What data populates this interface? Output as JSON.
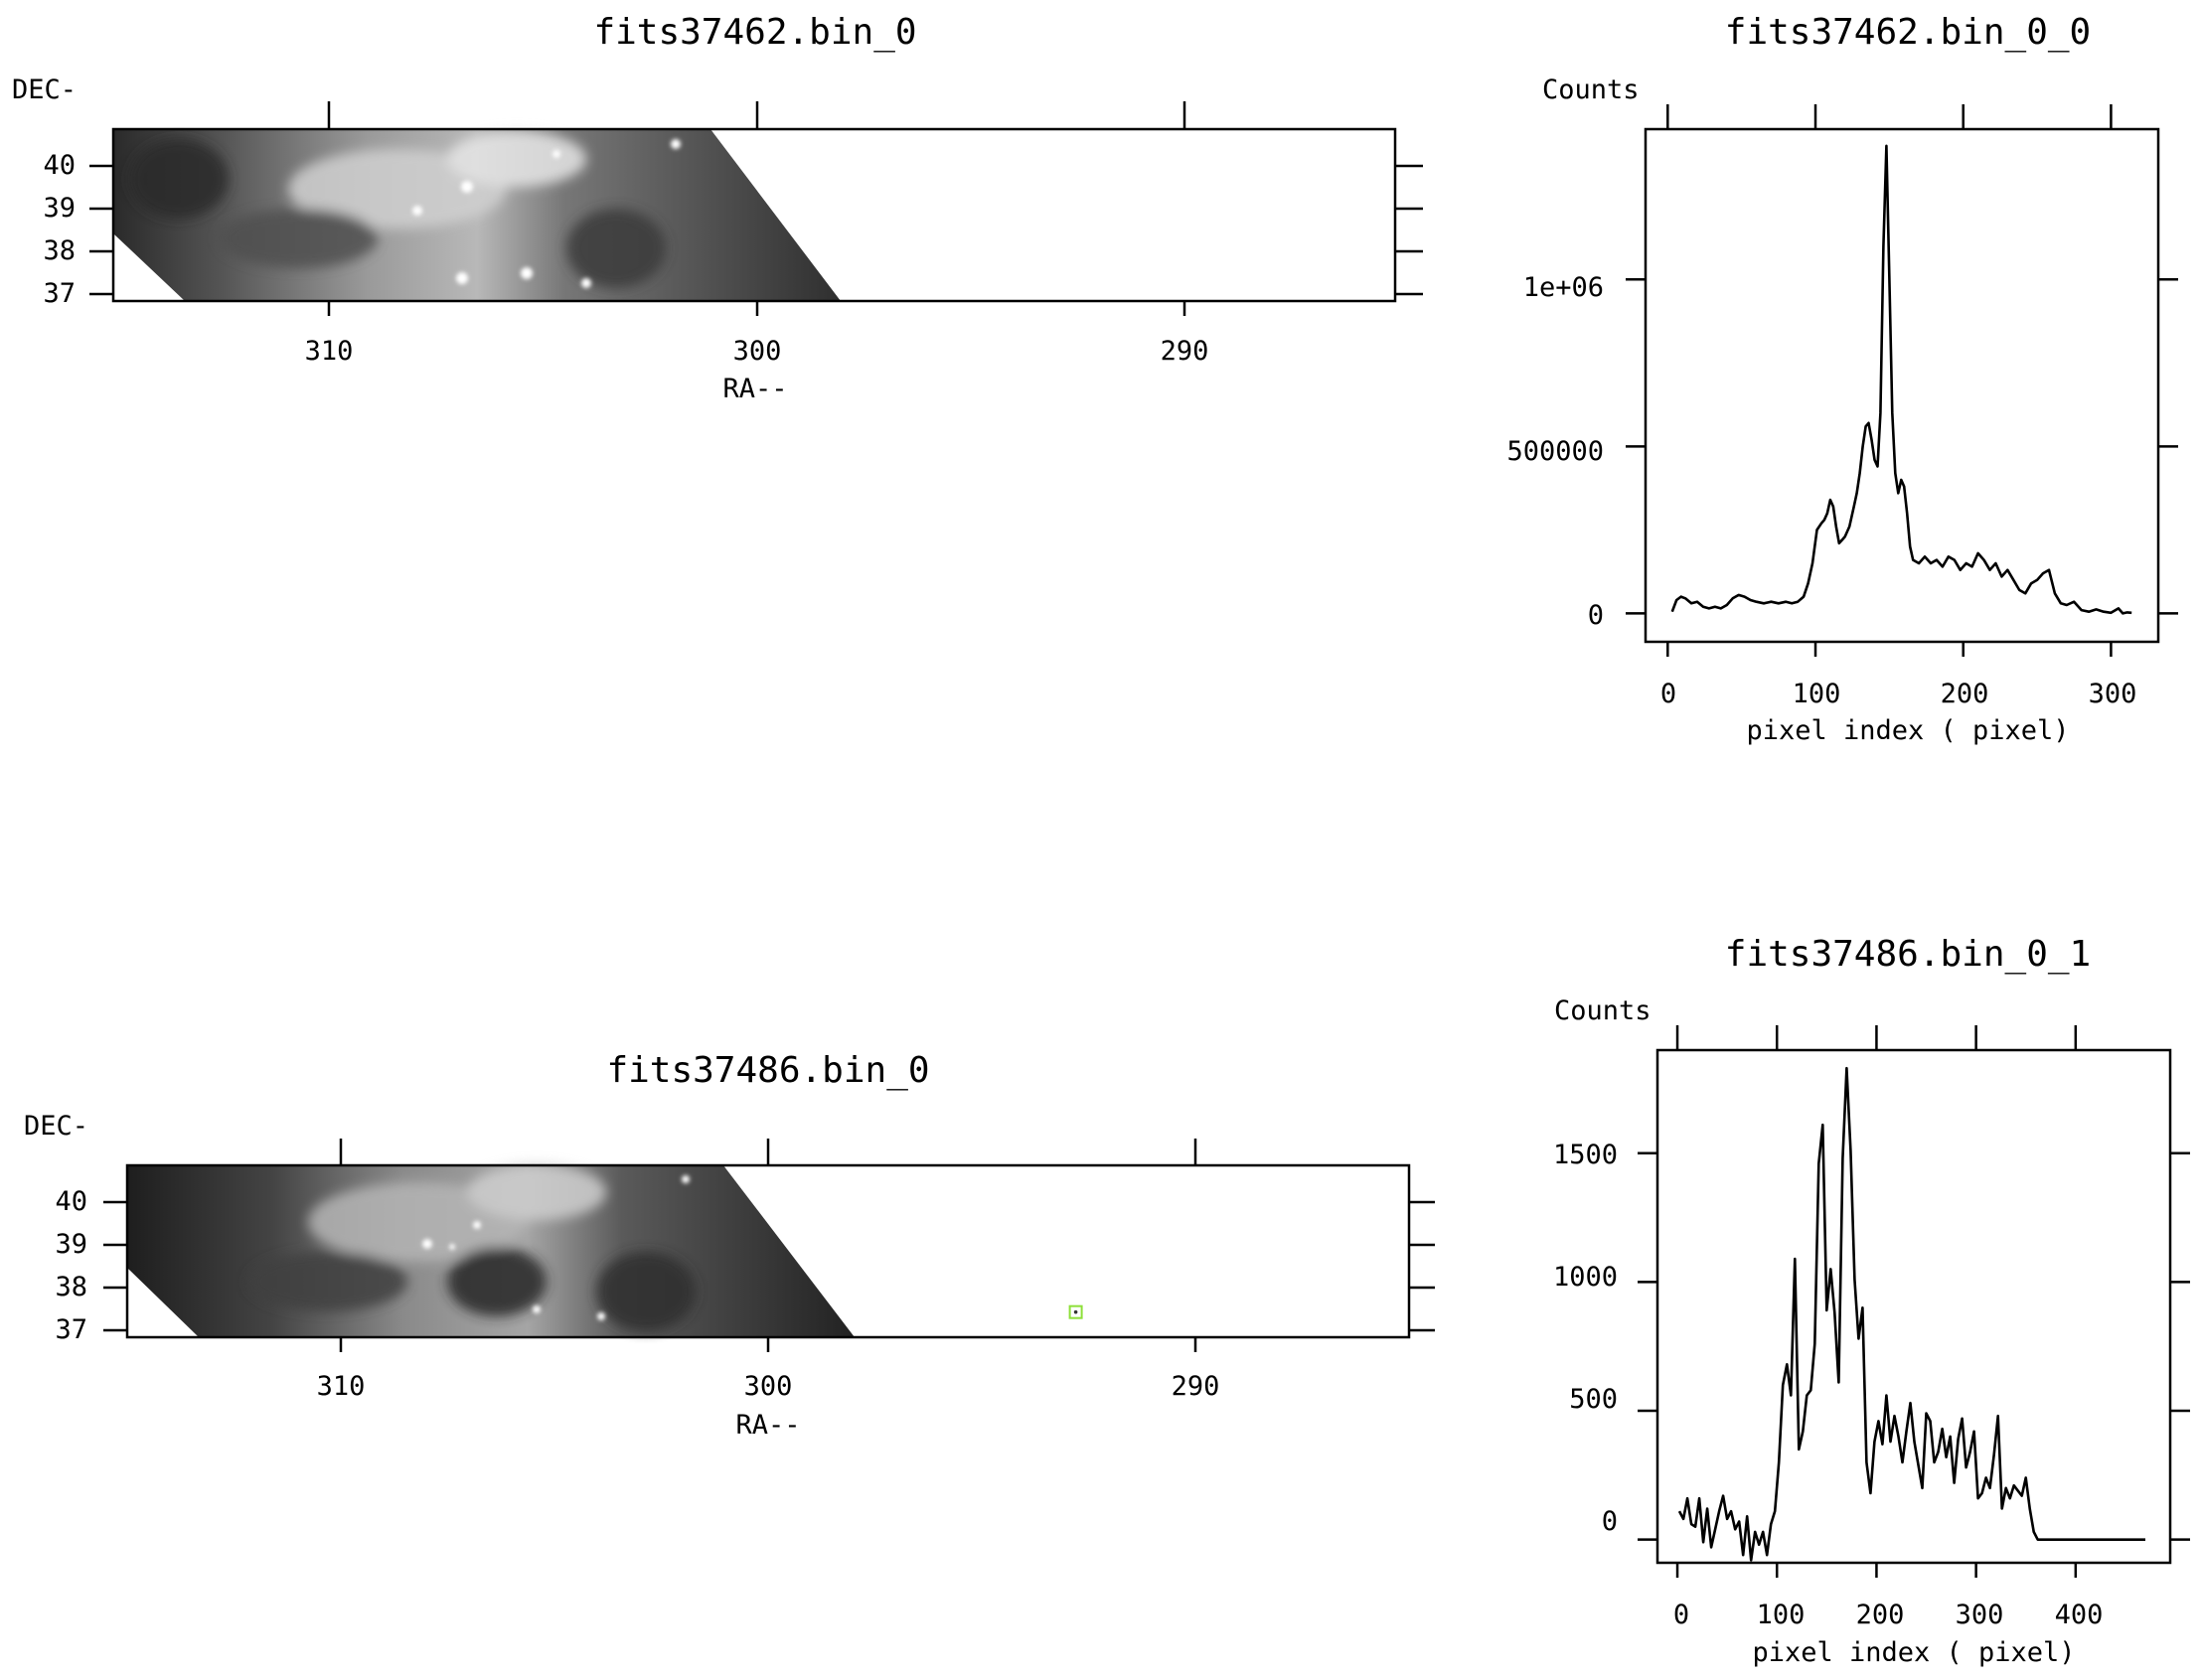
{
  "chart_data": [
    {
      "type": "heatmap",
      "title": "fits37462.bin_0",
      "xlabel": "RA--",
      "ylabel": "DEC-",
      "xlim": [
        315,
        285
      ],
      "ylim": [
        36.7,
        40.8
      ],
      "x_ticks": [
        "310",
        "300",
        "290"
      ],
      "y_ticks": [
        "40",
        "39",
        "38",
        "37"
      ],
      "colormap": "grayscale"
    },
    {
      "type": "line",
      "title": "fits37462.bin_0_0",
      "xlabel": "pixel index  ( pixel)",
      "ylabel": "Counts",
      "xlim": [
        -15,
        332
      ],
      "ylim": [
        -85000,
        1450000
      ],
      "x_ticks": [
        "0",
        "100",
        "200",
        "300"
      ],
      "y_ticks": [
        "0",
        "500000",
        "1e+06"
      ],
      "x": [
        3,
        6,
        9,
        12,
        16,
        20,
        24,
        28,
        32,
        36,
        40,
        44,
        48,
        52,
        56,
        60,
        65,
        70,
        75,
        80,
        84,
        88,
        92,
        95,
        98,
        101,
        104,
        106,
        108,
        110,
        112,
        114,
        116,
        118,
        120,
        123,
        126,
        128,
        130,
        132,
        134,
        136,
        138,
        140,
        142,
        144,
        146,
        148,
        150,
        152,
        154,
        156,
        158,
        160,
        162,
        164,
        166,
        170,
        174,
        178,
        182,
        186,
        190,
        194,
        198,
        202,
        206,
        210,
        214,
        218,
        222,
        226,
        230,
        234,
        238,
        242,
        246,
        250,
        254,
        258,
        262,
        266,
        270,
        275,
        280,
        285,
        290,
        295,
        300,
        305,
        308,
        311,
        314
      ],
      "y": [
        5000,
        40000,
        50000,
        45000,
        30000,
        35000,
        20000,
        15000,
        20000,
        15000,
        25000,
        45000,
        55000,
        50000,
        40000,
        35000,
        30000,
        35000,
        30000,
        35000,
        30000,
        35000,
        50000,
        90000,
        150000,
        250000,
        270000,
        280000,
        300000,
        340000,
        320000,
        260000,
        210000,
        220000,
        230000,
        260000,
        320000,
        360000,
        420000,
        500000,
        560000,
        570000,
        520000,
        460000,
        440000,
        600000,
        1100000,
        1400000,
        1000000,
        600000,
        420000,
        360000,
        400000,
        380000,
        300000,
        200000,
        160000,
        150000,
        170000,
        150000,
        160000,
        140000,
        170000,
        160000,
        130000,
        150000,
        140000,
        180000,
        160000,
        130000,
        150000,
        110000,
        130000,
        100000,
        70000,
        60000,
        90000,
        100000,
        120000,
        130000,
        60000,
        30000,
        25000,
        35000,
        10000,
        5000,
        12000,
        5000,
        2000,
        15000,
        0,
        3000,
        2000
      ]
    },
    {
      "type": "heatmap",
      "title": "fits37486.bin_0",
      "xlabel": "RA--",
      "ylabel": "DEC-",
      "xlim": [
        315,
        285
      ],
      "ylim": [
        36.7,
        40.8
      ],
      "x_ticks": [
        "310",
        "300",
        "290"
      ],
      "y_ticks": [
        "40",
        "39",
        "38",
        "37"
      ],
      "colormap": "grayscale",
      "marker": {
        "ra": 292.8,
        "dec": 37.3,
        "color": "#8ee03a"
      }
    },
    {
      "type": "line",
      "title": "fits37486.bin_0_1",
      "xlabel": "pixel index  ( pixel)",
      "ylabel": "Counts",
      "xlim": [
        -20,
        495
      ],
      "ylim": [
        -90,
        1900
      ],
      "x_ticks": [
        "0",
        "100",
        "200",
        "300",
        "400"
      ],
      "y_ticks": [
        "0",
        "500",
        "1000",
        "1500"
      ],
      "x": [
        2,
        6,
        10,
        14,
        18,
        22,
        26,
        30,
        34,
        38,
        42,
        46,
        50,
        54,
        58,
        62,
        66,
        70,
        74,
        78,
        82,
        86,
        90,
        94,
        98,
        102,
        106,
        110,
        114,
        118,
        122,
        126,
        130,
        134,
        138,
        142,
        146,
        150,
        154,
        158,
        162,
        166,
        170,
        174,
        178,
        182,
        186,
        190,
        194,
        198,
        202,
        206,
        210,
        214,
        218,
        222,
        226,
        230,
        234,
        238,
        242,
        246,
        250,
        254,
        258,
        262,
        266,
        270,
        274,
        278,
        282,
        286,
        290,
        294,
        298,
        302,
        306,
        310,
        314,
        318,
        322,
        326,
        330,
        334,
        338,
        342,
        346,
        350,
        354,
        358,
        362,
        366,
        370,
        374,
        378,
        382,
        386,
        390,
        394,
        398,
        402,
        406,
        410,
        414,
        418,
        422,
        426,
        430,
        434,
        438,
        442,
        446,
        450,
        454,
        458,
        462,
        466,
        470
      ],
      "y": [
        110,
        80,
        160,
        60,
        50,
        160,
        -10,
        120,
        -30,
        40,
        110,
        170,
        80,
        110,
        40,
        70,
        -60,
        90,
        -80,
        30,
        -20,
        30,
        -60,
        60,
        110,
        300,
        600,
        680,
        560,
        1090,
        350,
        420,
        560,
        580,
        760,
        1460,
        1610,
        890,
        1050,
        880,
        610,
        1480,
        1830,
        1510,
        1010,
        780,
        900,
        300,
        180,
        380,
        460,
        370,
        560,
        380,
        480,
        400,
        300,
        420,
        530,
        380,
        290,
        200,
        490,
        460,
        300,
        340,
        430,
        320,
        400,
        220,
        390,
        470,
        280,
        340,
        420,
        160,
        180,
        240,
        200,
        330,
        480,
        120,
        200,
        160,
        210,
        190,
        170,
        240,
        120,
        30,
        0,
        0,
        0,
        0,
        0,
        0,
        0,
        0,
        0,
        0,
        0,
        0,
        0,
        0,
        0,
        0,
        0,
        0,
        0,
        0,
        0,
        0,
        0,
        0,
        0,
        0,
        0,
        0
      ]
    }
  ]
}
